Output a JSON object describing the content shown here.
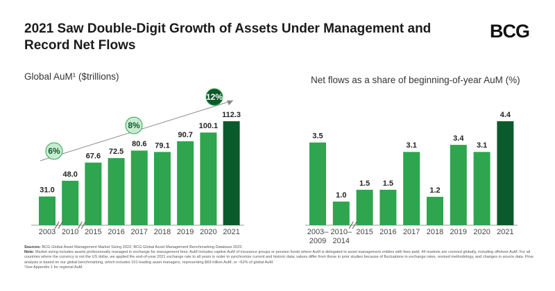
{
  "header": {
    "title": "2021 Saw Double-Digit Growth of Assets Under Management and Record Net Flows",
    "logo": "BCG"
  },
  "chart_data": [
    {
      "type": "bar",
      "title": "Global AuM¹ ($trillions)",
      "categories": [
        "2003",
        "2010",
        "2015",
        "2016",
        "2017",
        "2018",
        "2019",
        "2020",
        "2021"
      ],
      "values": [
        31.0,
        48.0,
        67.6,
        72.5,
        80.6,
        79.1,
        90.7,
        100.1,
        112.3
      ],
      "value_labels": [
        "31.0",
        "48.0",
        "67.6",
        "72.5",
        "80.6",
        "79.1",
        "90.7",
        "100.1",
        "112.3"
      ],
      "colors": [
        "#2ea54e",
        "#2ea54e",
        "#2ea54e",
        "#2ea54e",
        "#2ea54e",
        "#2ea54e",
        "#2ea54e",
        "#2ea54e",
        "#0b5a2b"
      ],
      "annotations": [
        "6%",
        "8%",
        "12%"
      ]
    },
    {
      "type": "bar",
      "title": "Net flows as a share of beginning-of-year AuM (%)",
      "categories": [
        "2003–\n2009",
        "2010–\n2014",
        "2015",
        "2016",
        "2017",
        "2018",
        "2019",
        "2020",
        "2021"
      ],
      "values": [
        3.5,
        1.0,
        1.5,
        1.5,
        3.1,
        1.2,
        3.4,
        3.1,
        4.4
      ],
      "value_labels": [
        "3.5",
        "1.0",
        "1.5",
        "1.5",
        "3.1",
        "1.2",
        "3.4",
        "3.1",
        "4.4"
      ],
      "colors": [
        "#2ea54e",
        "#2ea54e",
        "#2ea54e",
        "#2ea54e",
        "#2ea54e",
        "#2ea54e",
        "#2ea54e",
        "#2ea54e",
        "#0b5a2b"
      ]
    }
  ],
  "footnotes": {
    "sources_label": "Sources:",
    "sources": "BCG Global Asset Management Market Sizing 2022; BCG Global Asset Management Benchmarking Database 2022.",
    "note_label": "Note:",
    "note": "Market sizing includes assets professionally managed in exchange for management fees; AuM includes captive AuM of insurance groups or pension funds where AuM is delegated to asset management entities with fees paid; 44 markets are covered globally, including offshore AuM. For all countries where the currency is not the US dollar, we applied the end-of-year 2021 exchange rate to all years in order to synchronize current and historic data; values differ from those in prior studies because of fluctuations in exchange rates, revised methodology, and changes in source data. Flow analysis is based on our global benchmarking, which includes 101 leading asset managers, representing $69 trillion AuM, or ~62% of global AuM.",
    "appendix": "¹See Appendix 1 for regional AuM."
  }
}
